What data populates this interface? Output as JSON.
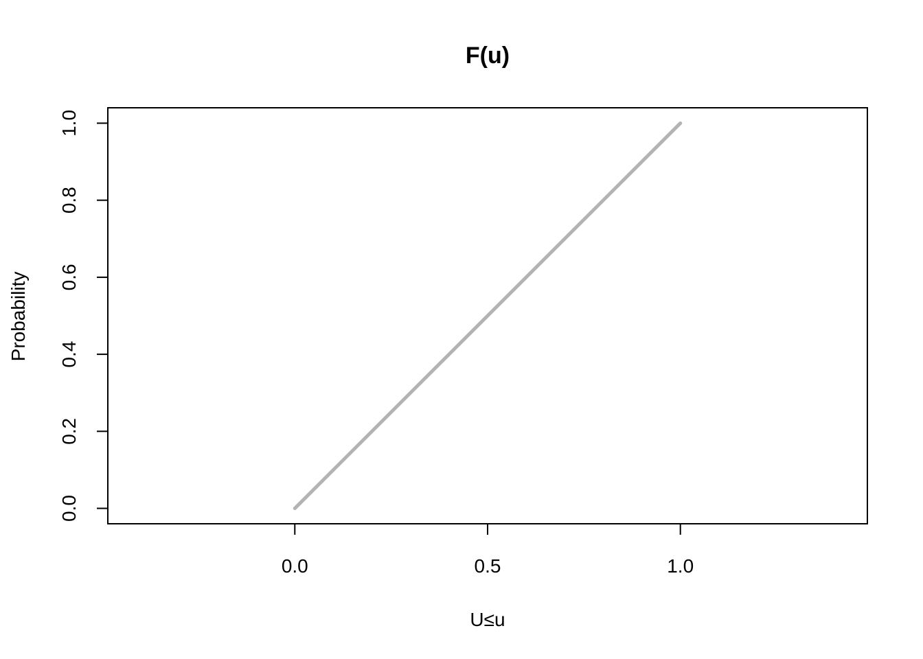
{
  "chart_data": {
    "type": "line",
    "title": "F(u)",
    "xlabel": "U≤u",
    "ylabel": "Probability",
    "xlim": [
      -0.485,
      1.485
    ],
    "ylim": [
      -0.04,
      1.04
    ],
    "x_ticks": [
      0.0,
      0.5,
      1.0
    ],
    "x_tick_labels": [
      "0.0",
      "0.5",
      "1.0"
    ],
    "y_ticks": [
      0.0,
      0.2,
      0.4,
      0.6,
      0.8,
      1.0
    ],
    "y_tick_labels": [
      "0.0",
      "0.2",
      "0.4",
      "0.6",
      "0.8",
      "1.0"
    ],
    "grid": false,
    "series": [
      {
        "color": "#b3b3b3",
        "x": [
          0.0,
          1.0
        ],
        "y": [
          0.0,
          1.0
        ]
      }
    ]
  }
}
